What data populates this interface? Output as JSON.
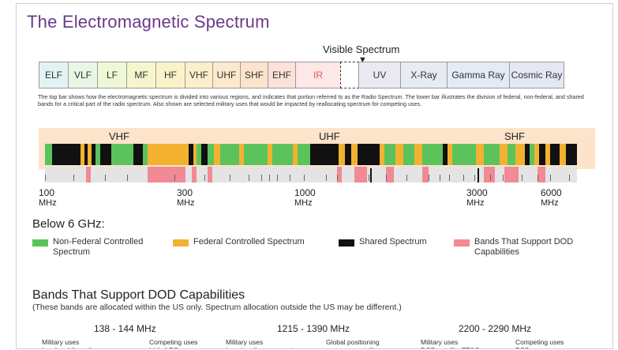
{
  "title": "The Electromagnetic Spectrum",
  "visible_spectrum_label": "Visible Spectrum",
  "spectrum_bands": [
    {
      "label": "ELF",
      "color": "#e3f3f3"
    },
    {
      "label": "VLF",
      "color": "#e8f6e6"
    },
    {
      "label": "LF",
      "color": "#eef8d6"
    },
    {
      "label": "MF",
      "color": "#f5f6cc"
    },
    {
      "label": "HF",
      "color": "#fbf3c8"
    },
    {
      "label": "VHF",
      "color": "#fcefcb"
    },
    {
      "label": "UHF",
      "color": "#fde9cd"
    },
    {
      "label": "SHF",
      "color": "#fde3cc"
    },
    {
      "label": "EHF",
      "color": "#fce2d8"
    },
    {
      "label": "IR",
      "color": "#fde7e7",
      "text_color": "#e05a5a"
    },
    {
      "label": "",
      "color": "#ffffff",
      "dashed": true
    },
    {
      "label": "UV",
      "color": "#eaeaf2"
    },
    {
      "label": "X-Ray",
      "color": "#e6ebf4"
    },
    {
      "label": "Gamma Ray",
      "color": "#e4eaf6"
    },
    {
      "label": "Cosmic Ray",
      "color": "#e3e8f4"
    }
  ],
  "description": "The top bar shows how the electromagnetic spectrum is divided into various regions, and indicates that portion referred to as the Radio Spectrum. The lower bar illustrates the division of federal, non-federal, and shared bands for a critical part of the radio spectrum. Also shown are selected military uses that would be impacted by reallocating spectrum for competing uses.",
  "band_region_labels": [
    "VHF",
    "UHF",
    "SHF"
  ],
  "axis_labels": [
    {
      "value": "100",
      "unit": "MHz"
    },
    {
      "value": "300",
      "unit": "MHz"
    },
    {
      "value": "1000",
      "unit": "MHz"
    },
    {
      "value": "3000",
      "unit": "MHz"
    },
    {
      "value": "6000",
      "unit": "MHz"
    }
  ],
  "legend_title": "Below 6 GHz:",
  "legend": [
    {
      "label": "Non-Federal Controlled Spectrum",
      "color": "#5cc35c"
    },
    {
      "label": "Federal Controlled Spectrum",
      "color": "#f2b230"
    },
    {
      "label": "Shared Spectrum",
      "color": "#111111"
    },
    {
      "label": "Bands That Support DOD Capabilities",
      "color": "#f08a95"
    }
  ],
  "section_title": "Bands That Support DOD Capabilities",
  "section_subtitle": "(These bands are allocated within the US only. Spectrum allocation outside the US may be different.)",
  "dod_bands": [
    {
      "range": "138 - 144 MHz",
      "left_label": "Military uses",
      "right_label": "Competing uses",
      "left_line": "Land mobile radio",
      "right_line": "Little LEOs"
    },
    {
      "range": "1215 - 1390 MHz",
      "left_label": "Military uses",
      "right_label": "Global positioning",
      "left_line": "Long/medium range air",
      "right_line": "system ... satellite"
    },
    {
      "range": "2200 - 2290 MHz",
      "left_label": "Military uses",
      "right_label": "Competing uses",
      "left_line": "DOD satellite TT&C",
      "right_line": "PCS"
    }
  ],
  "colors": {
    "title": "#6b3a8a",
    "non_federal": "#5cc35c",
    "federal": "#f2b230",
    "shared": "#111111",
    "dod": "#f08a95",
    "band_background": "#fde3c9",
    "lower_track": "#e4e4e4"
  }
}
